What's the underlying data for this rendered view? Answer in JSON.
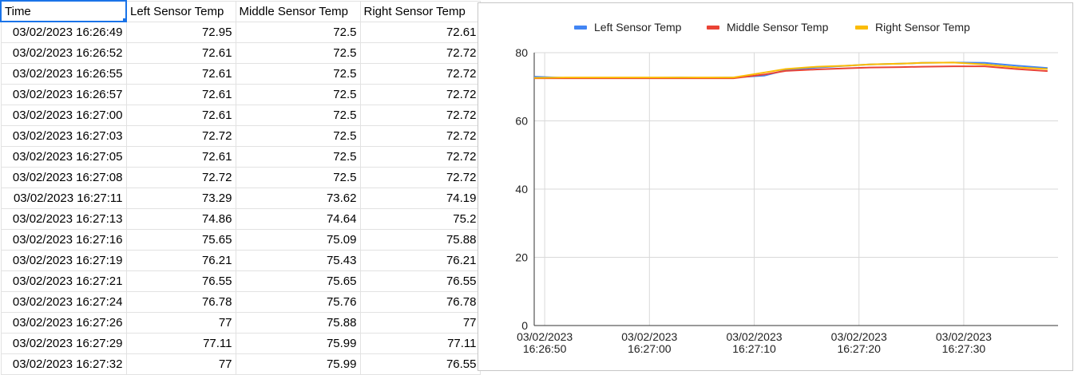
{
  "sheet": {
    "headers": [
      "Time",
      "Left Sensor Temp",
      "Middle Sensor Temp",
      "Right Sensor Temp"
    ],
    "rows": [
      [
        "03/02/2023 16:26:49",
        "72.95",
        "72.5",
        "72.61"
      ],
      [
        "03/02/2023 16:26:52",
        "72.61",
        "72.5",
        "72.72"
      ],
      [
        "03/02/2023 16:26:55",
        "72.61",
        "72.5",
        "72.72"
      ],
      [
        "03/02/2023 16:26:57",
        "72.61",
        "72.5",
        "72.72"
      ],
      [
        "03/02/2023 16:27:00",
        "72.61",
        "72.5",
        "72.72"
      ],
      [
        "03/02/2023 16:27:03",
        "72.72",
        "72.5",
        "72.72"
      ],
      [
        "03/02/2023 16:27:05",
        "72.61",
        "72.5",
        "72.72"
      ],
      [
        "03/02/2023 16:27:08",
        "72.72",
        "72.5",
        "72.72"
      ],
      [
        "03/02/2023 16:27:11",
        "73.29",
        "73.62",
        "74.19"
      ],
      [
        "03/02/2023 16:27:13",
        "74.86",
        "74.64",
        "75.2"
      ],
      [
        "03/02/2023 16:27:16",
        "75.65",
        "75.09",
        "75.88"
      ],
      [
        "03/02/2023 16:27:19",
        "76.21",
        "75.43",
        "76.21"
      ],
      [
        "03/02/2023 16:27:21",
        "76.55",
        "75.65",
        "76.55"
      ],
      [
        "03/02/2023 16:27:24",
        "76.78",
        "75.76",
        "76.78"
      ],
      [
        "03/02/2023 16:27:26",
        "77",
        "75.88",
        "77"
      ],
      [
        "03/02/2023 16:27:29",
        "77.11",
        "75.99",
        "77.11"
      ],
      [
        "03/02/2023 16:27:32",
        "77",
        "75.99",
        "76.55"
      ]
    ]
  },
  "chart_data": {
    "type": "line",
    "title": "",
    "xlabel": "",
    "ylabel": "",
    "ylim": [
      0,
      80
    ],
    "y_ticks": [
      0,
      20,
      40,
      60,
      80
    ],
    "xlim": [
      "03/02/2023 16:26:49",
      "03/02/2023 16:27:39"
    ],
    "x_ticks": [
      {
        "value": "03/02/2023 16:26:50",
        "line1": "03/02/2023",
        "line2": "16:26:50"
      },
      {
        "value": "03/02/2023 16:27:00",
        "line1": "03/02/2023",
        "line2": "16:27:00"
      },
      {
        "value": "03/02/2023 16:27:10",
        "line1": "03/02/2023",
        "line2": "16:27:10"
      },
      {
        "value": "03/02/2023 16:27:20",
        "line1": "03/02/2023",
        "line2": "16:27:20"
      },
      {
        "value": "03/02/2023 16:27:30",
        "line1": "03/02/2023",
        "line2": "16:27:30"
      }
    ],
    "grid": true,
    "legend_position": "top",
    "x": [
      "03/02/2023 16:26:49",
      "03/02/2023 16:26:52",
      "03/02/2023 16:26:55",
      "03/02/2023 16:26:57",
      "03/02/2023 16:27:00",
      "03/02/2023 16:27:03",
      "03/02/2023 16:27:05",
      "03/02/2023 16:27:08",
      "03/02/2023 16:27:11",
      "03/02/2023 16:27:13",
      "03/02/2023 16:27:16",
      "03/02/2023 16:27:19",
      "03/02/2023 16:27:21",
      "03/02/2023 16:27:24",
      "03/02/2023 16:27:26",
      "03/02/2023 16:27:29",
      "03/02/2023 16:27:32",
      "03/02/2023 16:27:35",
      "03/02/2023 16:27:38"
    ],
    "series": [
      {
        "name": "Left Sensor Temp",
        "color": "#4285f4",
        "values": [
          72.95,
          72.61,
          72.61,
          72.61,
          72.61,
          72.72,
          72.61,
          72.72,
          73.29,
          74.86,
          75.65,
          76.21,
          76.55,
          76.78,
          77,
          77.11,
          77,
          76.2,
          75.5
        ]
      },
      {
        "name": "Middle Sensor Temp",
        "color": "#ea4335",
        "values": [
          72.5,
          72.5,
          72.5,
          72.5,
          72.5,
          72.5,
          72.5,
          72.5,
          73.62,
          74.64,
          75.09,
          75.43,
          75.65,
          75.76,
          75.88,
          75.99,
          75.99,
          75.2,
          74.6
        ]
      },
      {
        "name": "Right Sensor Temp",
        "color": "#fbbc04",
        "values": [
          72.61,
          72.72,
          72.72,
          72.72,
          72.72,
          72.72,
          72.72,
          72.72,
          74.19,
          75.2,
          75.88,
          76.21,
          76.55,
          76.78,
          77,
          77.11,
          76.55,
          75.7,
          75.2
        ]
      }
    ]
  }
}
